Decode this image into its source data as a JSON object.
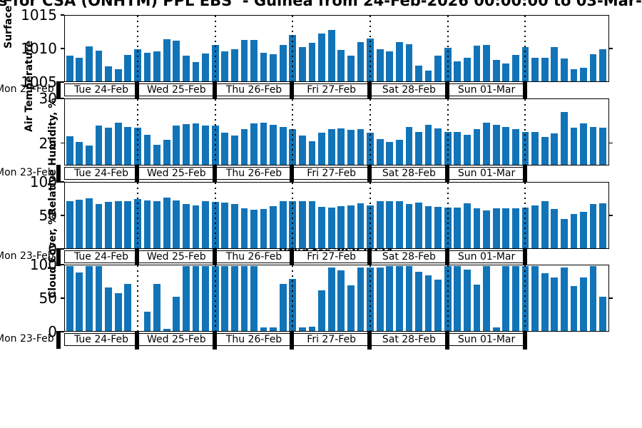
{
  "title": "s for CSA (ONHTM) PPL EBS  - Guinea from 24-Feb-2026 00:00:00 to 03-Mar-",
  "annotation": "Valid for 20260224",
  "bar_color": "#1274b8",
  "x_axis": {
    "left_label": "Mon 23-Feb",
    "day_labels": [
      "Tue 24-Feb",
      "Wed 25-Feb",
      "Thu 26-Feb",
      "Fri 27-Feb",
      "Sat 28-Feb",
      "Sun 01-Mar"
    ],
    "bars_per_day": 8
  },
  "chart_data": [
    {
      "type": "bar",
      "ylabel": "Surface Pressure, mb",
      "yticks": [
        1015,
        1010,
        1005
      ],
      "ylim": [
        1005,
        1015
      ],
      "values": [
        1009.0,
        1008.6,
        1010.4,
        1009.7,
        1007.3,
        1006.9,
        1009.1,
        1010.0,
        1009.4,
        1009.6,
        1011.5,
        1011.3,
        1009.0,
        1008.0,
        1009.3,
        1010.6,
        1009.6,
        1010.0,
        1011.4,
        1011.4,
        1009.4,
        1009.2,
        1010.6,
        1012.1,
        1010.3,
        1010.9,
        1012.4,
        1012.9,
        1009.8,
        1009.0,
        1011.0,
        1011.6,
        1010.0,
        1009.6,
        1011.1,
        1010.7,
        1007.4,
        1006.7,
        1009.0,
        1010.2,
        1008.1,
        1008.6,
        1010.5,
        1010.6,
        1008.3,
        1007.7,
        1009.1,
        1010.3,
        1008.6,
        1008.6,
        1010.3,
        1008.5,
        1006.9,
        1007.1,
        1009.2,
        1009.9
      ]
    },
    {
      "type": "bar",
      "ylabel": "Air Temperature",
      "yticks": [
        30,
        25
      ],
      "ylim": [
        22.5,
        30
      ],
      "values": [
        25.8,
        25.1,
        24.7,
        27.0,
        26.8,
        27.4,
        26.9,
        26.8,
        26.0,
        24.8,
        25.4,
        27.0,
        27.2,
        27.3,
        27.0,
        27.0,
        26.2,
        25.9,
        26.6,
        27.3,
        27.4,
        27.1,
        26.9,
        26.6,
        25.9,
        25.2,
        26.2,
        26.6,
        26.7,
        26.5,
        26.6,
        26.2,
        25.5,
        25.1,
        25.4,
        26.9,
        26.3,
        27.1,
        26.7,
        26.3,
        26.3,
        26.0,
        26.6,
        27.4,
        27.1,
        26.9,
        26.6,
        26.3,
        26.3,
        25.7,
        26.1,
        28.6,
        26.8,
        27.3,
        26.9,
        26.8
      ]
    },
    {
      "type": "bar",
      "ylabel": "Relative Humidity, %",
      "yticks": [
        100,
        50,
        0
      ],
      "ylim": [
        0,
        100
      ],
      "values": [
        73,
        75,
        77,
        68,
        71,
        72,
        73,
        76,
        74,
        73,
        78,
        74,
        68,
        66,
        72,
        71,
        70,
        68,
        62,
        59,
        60,
        65,
        72,
        72,
        72,
        72,
        64,
        63,
        65,
        66,
        69,
        66,
        72,
        73,
        72,
        68,
        70,
        65,
        64,
        63,
        63,
        69,
        62,
        58,
        62,
        62,
        62,
        63,
        66,
        72,
        61,
        45,
        53,
        56,
        68,
        69
      ]
    },
    {
      "type": "bar",
      "ylabel": "Cloud Cover, %",
      "yticks": [
        100,
        50,
        0
      ],
      "ylim": [
        0,
        100
      ],
      "values": [
        100,
        90,
        100,
        100,
        67,
        58,
        73,
        0,
        30,
        73,
        3,
        53,
        100,
        100,
        100,
        100,
        100,
        100,
        100,
        100,
        5,
        5,
        72,
        80,
        5,
        7,
        63,
        98,
        93,
        70,
        98,
        98,
        98,
        100,
        100,
        100,
        91,
        86,
        79,
        100,
        100,
        94,
        71,
        100,
        6,
        100,
        100,
        100,
        100,
        89,
        82,
        98,
        69,
        82,
        100,
        53
      ]
    }
  ]
}
